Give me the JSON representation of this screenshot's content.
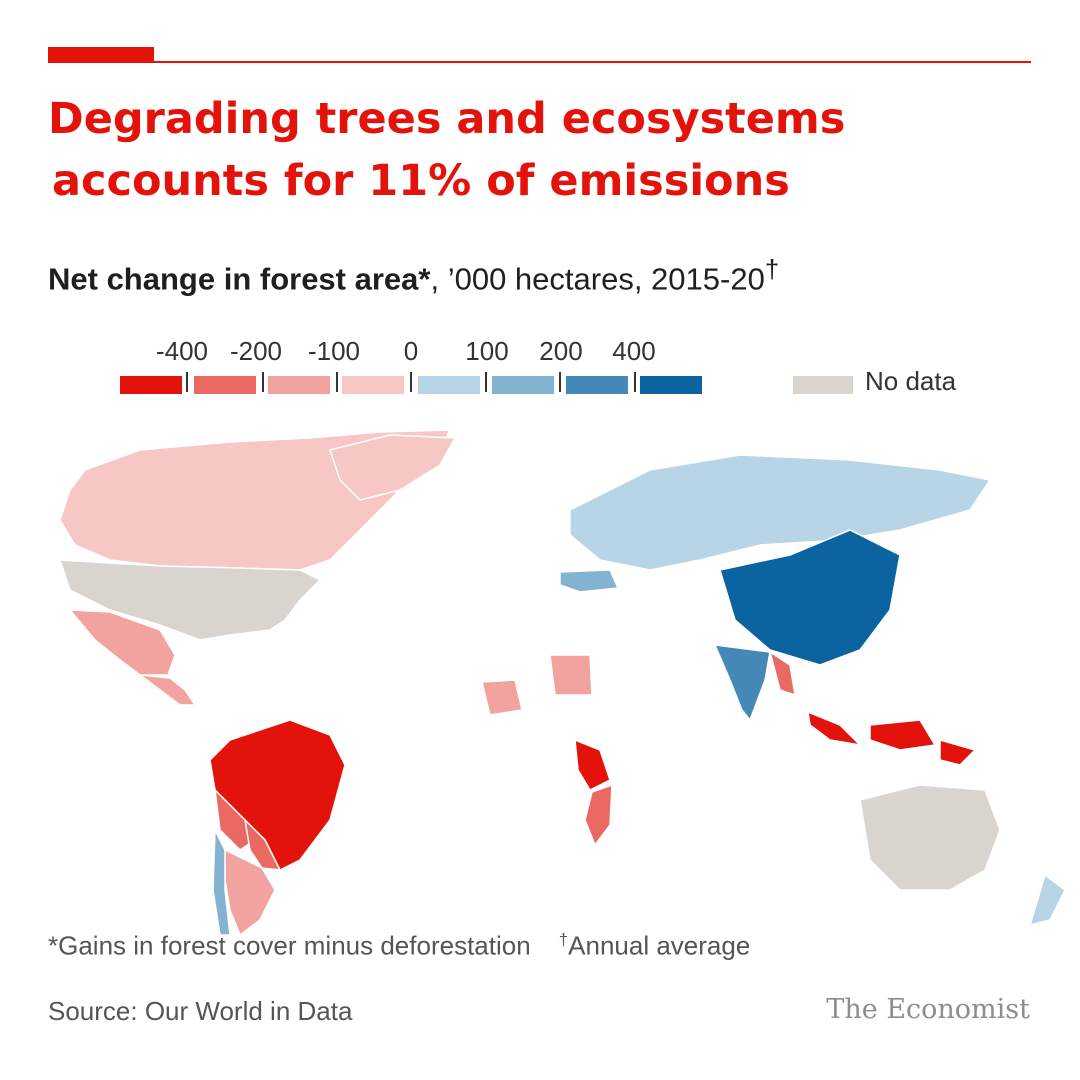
{
  "header": {
    "title_line1": "Degrading trees and ecosystems",
    "title_line2": "accounts for 11% of emissions",
    "subtitle_bold": "Net change in forest area*",
    "subtitle_rest": ", ’000 hectares, 2015-20",
    "subtitle_mark": "†"
  },
  "legend": {
    "ticks": [
      "-400",
      "-200",
      "-100",
      "0",
      "100",
      "200",
      "400"
    ],
    "bins": [
      "#e3120b",
      "#ea6a63",
      "#f2a3a0",
      "#f7c7c6",
      "#b7d5e6",
      "#84b3d1",
      "#4388b6",
      "#0b64a0"
    ],
    "nodata_label": "No data",
    "nodata_color": "#d9d5ce"
  },
  "map": {
    "regions": [
      {
        "name": "Canada",
        "bin": 3
      },
      {
        "name": "Greenland",
        "bin": 3
      },
      {
        "name": "United States",
        "bin": "nodata"
      },
      {
        "name": "Mexico",
        "bin": 2
      },
      {
        "name": "Central America",
        "bin": 2
      },
      {
        "name": "Brazil",
        "bin": 0
      },
      {
        "name": "Bolivia",
        "bin": 1
      },
      {
        "name": "Paraguay",
        "bin": 1
      },
      {
        "name": "Argentina",
        "bin": 2
      },
      {
        "name": "Chile",
        "bin": 5
      },
      {
        "name": "Russia",
        "bin": 4
      },
      {
        "name": "China",
        "bin": 7
      },
      {
        "name": "India",
        "bin": 6
      },
      {
        "name": "Turkey",
        "bin": 5
      },
      {
        "name": "Myanmar",
        "bin": 1
      },
      {
        "name": "Indonesia",
        "bin": 0
      },
      {
        "name": "Tanzania",
        "bin": 0
      },
      {
        "name": "Mozambique",
        "bin": 1
      },
      {
        "name": "Nigeria",
        "bin": 2
      },
      {
        "name": "Sudan",
        "bin": 2
      },
      {
        "name": "Australia",
        "bin": "nodata"
      },
      {
        "name": "New Zealand",
        "bin": 4
      }
    ]
  },
  "footer": {
    "footnote1": "*Gains in forest cover minus deforestation",
    "footnote2_mark": "†",
    "footnote2_text": "Annual average",
    "source": "Source: Our World in Data",
    "brand": "The Economist"
  }
}
